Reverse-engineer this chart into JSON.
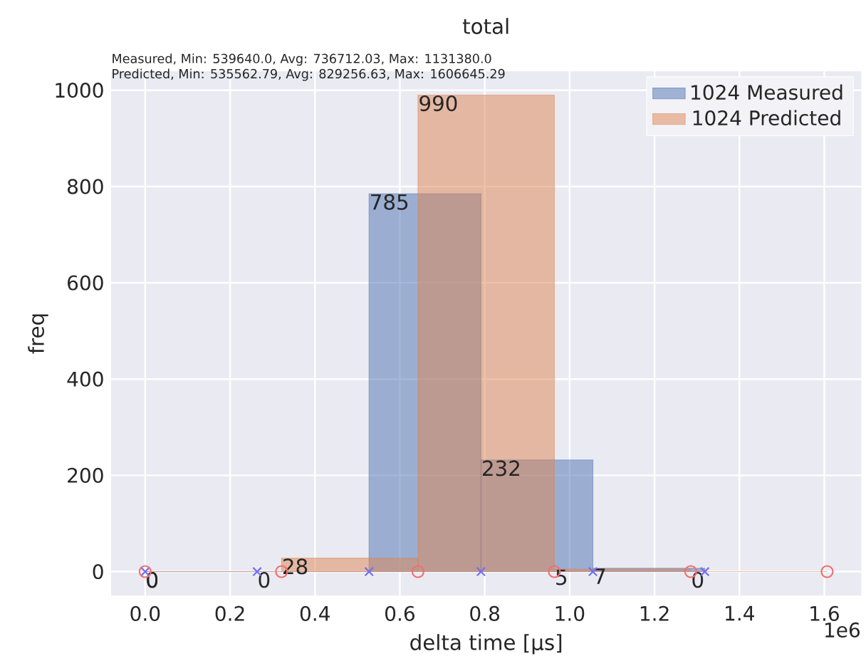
{
  "chart_data": {
    "type": "histogram",
    "title": "total",
    "xlabel": "delta time [µs]",
    "ylabel": "freq",
    "annotations": [
      "Measured, Min: 539640.0, Avg: 736712.03, Max: 1131380.0",
      "Predicted, Min: 535562.79, Avg: 829256.63, Max: 1606645.29",
      "1e6"
    ],
    "series": [
      {
        "name": "1024 Measured",
        "color": "#4c72b0",
        "bins": [
          0,
          0.2637,
          0.5274,
          0.7911,
          1.0548,
          1.3185
        ],
        "values": [
          0,
          0,
          785,
          232,
          7
        ],
        "value_labels": [
          "0",
          "0",
          "785",
          "232",
          "7"
        ]
      },
      {
        "name": "1024 Predicted",
        "color": "#dd8452",
        "bins": [
          0,
          0.3213,
          0.6427,
          0.964,
          1.2853,
          1.6066
        ],
        "values": [
          0,
          28,
          990,
          5,
          0
        ],
        "value_labels": [
          "0",
          "28",
          "990",
          "5",
          "0"
        ]
      },
      {
        "type": "scatter",
        "marker": "cross",
        "color": "#7070f0",
        "x": [
          0,
          0.2637,
          0.5274,
          0.7911,
          1.0548,
          1.3185
        ],
        "values": [
          0,
          0,
          0,
          0,
          0,
          0
        ]
      },
      {
        "type": "scatter",
        "marker": "circle",
        "color": "#f07070",
        "x": [
          0,
          0.3213,
          0.6427,
          0.964,
          1.2853,
          1.6066
        ],
        "values": [
          0,
          0,
          0,
          0,
          0,
          0
        ]
      }
    ],
    "grid": true,
    "legend": "top right",
    "xlim": [
      -0.0803,
      1.687
    ],
    "ylim": [
      -49.5,
      1039.5
    ],
    "xticks": [
      {
        "value": 0,
        "label": "0.0"
      },
      0.2,
      0.4,
      0.6,
      0.8,
      {
        "value": 1,
        "label": "1.0"
      },
      1.2,
      1.4,
      1.6
    ],
    "yticks": [
      0,
      200,
      400,
      600,
      800,
      1000
    ]
  }
}
